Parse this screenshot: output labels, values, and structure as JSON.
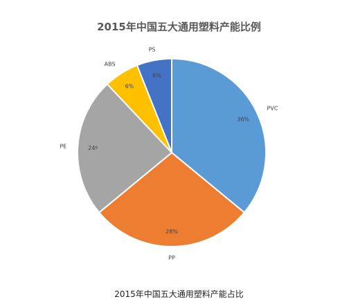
{
  "chart_data": {
    "type": "pie",
    "title": "2015年中国五大通用塑料产能比例",
    "categories": [
      "PVC",
      "PP",
      "PE",
      "ABS",
      "PS"
    ],
    "values": [
      36,
      28,
      24,
      6,
      6
    ],
    "value_labels": [
      "36%",
      "28%",
      "24º",
      "6%",
      "6%"
    ],
    "colors": [
      "#5B9BD5",
      "#ED7D31",
      "#A5A5A5",
      "#FFC000",
      "#4472C4"
    ]
  },
  "caption": "2015年中国五大通用塑料产能占比"
}
